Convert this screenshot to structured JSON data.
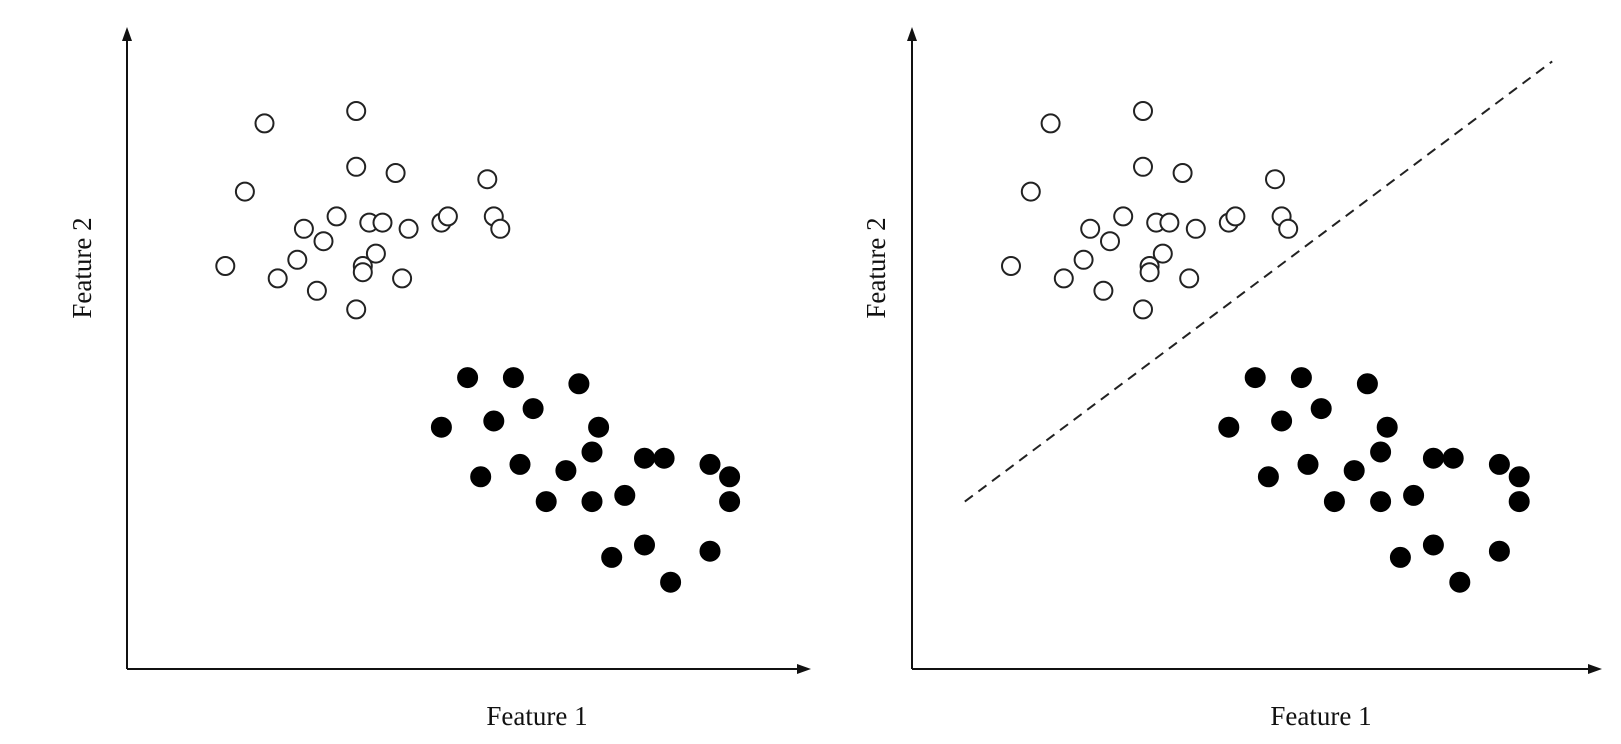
{
  "chart_data": [
    {
      "type": "scatter",
      "xlabel": "Feature 1",
      "ylabel": "Feature 2",
      "xlim": [
        0,
        100
      ],
      "ylim": [
        0,
        100
      ],
      "grid": false,
      "series": [
        {
          "marker": "open-circle",
          "color": "#ffffff",
          "x": [
            21,
            35,
            35,
            41,
            18,
            27,
            32,
            37,
            39,
            43,
            48,
            49,
            15,
            26,
            30,
            36,
            38,
            55,
            56,
            57,
            23,
            29,
            36,
            42,
            35
          ],
          "y": [
            88,
            90,
            81,
            80,
            77,
            71,
            73,
            72,
            72,
            71,
            72,
            73,
            65,
            66,
            69,
            65,
            67,
            79,
            73,
            71,
            63,
            61,
            64,
            63,
            58
          ]
        },
        {
          "marker": "filled-circle",
          "color": "#000000",
          "x": [
            52,
            59,
            69,
            48,
            56,
            62,
            72,
            82,
            54,
            60,
            67,
            71,
            79,
            89,
            92,
            64,
            71,
            76,
            92,
            74,
            79,
            89,
            83
          ],
          "y": [
            47,
            47,
            46,
            39,
            40,
            42,
            39,
            34,
            31,
            33,
            32,
            35,
            34,
            33,
            31,
            27,
            27,
            28,
            27,
            18,
            20,
            19,
            14
          ]
        }
      ]
    },
    {
      "type": "scatter",
      "xlabel": "Feature 1",
      "ylabel": "Feature 2",
      "xlim": [
        0,
        100
      ],
      "ylim": [
        0,
        100
      ],
      "grid": false,
      "series": [
        {
          "marker": "open-circle",
          "color": "#ffffff",
          "x": [
            21,
            35,
            35,
            41,
            18,
            27,
            32,
            37,
            39,
            43,
            48,
            49,
            15,
            26,
            30,
            36,
            38,
            55,
            56,
            57,
            23,
            29,
            36,
            42,
            35
          ],
          "y": [
            88,
            90,
            81,
            80,
            77,
            71,
            73,
            72,
            72,
            71,
            72,
            73,
            65,
            66,
            69,
            65,
            67,
            79,
            73,
            71,
            63,
            61,
            64,
            63,
            58
          ]
        },
        {
          "marker": "filled-circle",
          "color": "#000000",
          "x": [
            52,
            59,
            69,
            48,
            56,
            62,
            72,
            82,
            54,
            60,
            67,
            71,
            79,
            89,
            92,
            64,
            71,
            76,
            92,
            74,
            79,
            89,
            83
          ],
          "y": [
            47,
            47,
            46,
            39,
            40,
            42,
            39,
            34,
            31,
            33,
            32,
            35,
            34,
            33,
            31,
            27,
            27,
            28,
            27,
            18,
            20,
            19,
            14
          ]
        }
      ],
      "decision_boundary": {
        "style": "dashed",
        "x": [
          8,
          97
        ],
        "y": [
          27,
          98
        ]
      }
    }
  ]
}
